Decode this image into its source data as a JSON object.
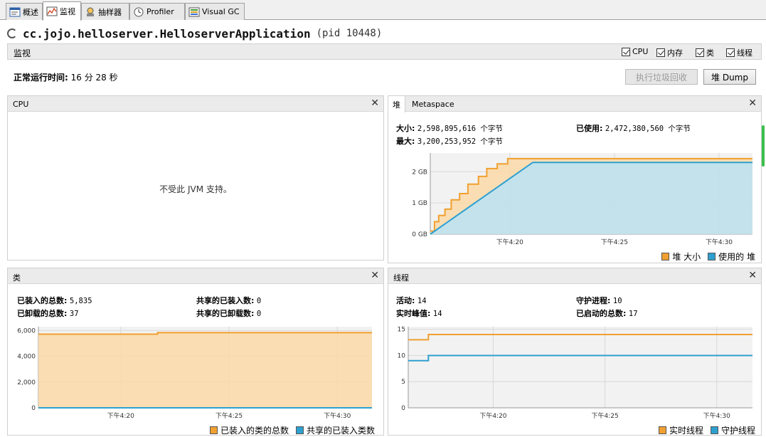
{
  "tabs": [
    {
      "label": "概述",
      "icon": "overview-icon"
    },
    {
      "label": "监视",
      "icon": "monitor-icon"
    },
    {
      "label": "抽样器",
      "icon": "sampler-icon"
    },
    {
      "label": "Profiler",
      "icon": "profiler-icon"
    },
    {
      "label": "Visual GC",
      "icon": "visual-gc-icon"
    }
  ],
  "app": {
    "name": "cc.jojo.helloserver.HelloserverApplication",
    "pid": "(pid 10448)"
  },
  "section": {
    "title": "监视",
    "checkboxes": [
      {
        "label": "CPU",
        "checked": true
      },
      {
        "label": "内存",
        "checked": true
      },
      {
        "label": "类",
        "checked": true
      },
      {
        "label": "线程",
        "checked": true
      }
    ]
  },
  "uptime": {
    "label": "正常运行时间:",
    "value": "16 分 28 秒"
  },
  "buttons": {
    "gc": "执行垃圾回收",
    "heap_dump": "堆 Dump"
  },
  "cpu_panel": {
    "title": "CPU",
    "message": "不受此 JVM 支持。"
  },
  "heap_panel": {
    "tabs": [
      "堆",
      "Metaspace"
    ],
    "size_label": "大小:",
    "size_value": "2,598,895,616 个字节",
    "max_label": "最大:",
    "max_value": "3,200,253,952 个字节",
    "used_label": "已使用:",
    "used_value": "2,472,380,560 个字节",
    "legend": [
      "堆 大小",
      "使用的 堆"
    ]
  },
  "classes_panel": {
    "title": "类",
    "loaded_label": "已装入的总数:",
    "loaded_value": "5,835",
    "unloaded_label": "已卸载的总数:",
    "unloaded_value": "37",
    "shared_loaded_label": "共享的已装入数:",
    "shared_loaded_value": "0",
    "shared_unloaded_label": "共享的已卸载数:",
    "shared_unloaded_value": "0",
    "legend": [
      "已装入的类的总数",
      "共享的已装入类数"
    ]
  },
  "threads_panel": {
    "title": "线程",
    "live_label": "活动:",
    "live_value": "14",
    "peak_label": "实时峰值:",
    "peak_value": "14",
    "daemon_label": "守护进程:",
    "daemon_value": "10",
    "started_label": "已启动的总数:",
    "started_value": "17",
    "legend": [
      "实时线程",
      "守护线程"
    ]
  },
  "colors": {
    "orange": "#f0a030",
    "orange_fill": "#fbd9a8",
    "blue": "#2ea0d0",
    "blue_fill": "#b9e3f5"
  },
  "chart_data": [
    {
      "type": "area",
      "name": "heap",
      "x_ticks": [
        "下午4:20",
        "下午4:25",
        "下午4:30"
      ],
      "x_tick_minutes": [
        20,
        25,
        30
      ],
      "x_range_minutes": [
        16.2,
        31.6
      ],
      "y_ticks": [
        "0 GB",
        "1 GB",
        "2 GB"
      ],
      "y_tick_values": [
        0,
        1,
        2
      ],
      "ylim": [
        0,
        2.6
      ],
      "series": [
        {
          "name": "堆 大小",
          "x": [
            16.2,
            16.4,
            16.4,
            16.6,
            16.6,
            16.9,
            16.9,
            17.2,
            17.2,
            17.6,
            17.6,
            18.0,
            18.0,
            18.5,
            18.5,
            18.9,
            18.9,
            19.4,
            19.4,
            19.9,
            19.9,
            31.6
          ],
          "values": [
            0.1,
            0.1,
            0.4,
            0.4,
            0.6,
            0.6,
            0.8,
            0.8,
            1.1,
            1.1,
            1.3,
            1.3,
            1.6,
            1.6,
            1.85,
            1.85,
            2.1,
            2.1,
            2.25,
            2.25,
            2.42,
            2.42
          ]
        },
        {
          "name": "使用的 堆",
          "x": [
            16.2,
            21.1,
            31.6
          ],
          "values": [
            0.0,
            2.3,
            2.3
          ]
        }
      ]
    },
    {
      "type": "area",
      "name": "classes",
      "x_ticks": [
        "下午4:20",
        "下午4:25",
        "下午4:30"
      ],
      "x_tick_minutes": [
        20,
        25,
        30
      ],
      "x_range_minutes": [
        16.2,
        31.6
      ],
      "y_ticks": [
        "0",
        "2,000",
        "4,000",
        "6,000"
      ],
      "y_tick_values": [
        0,
        2000,
        4000,
        6000
      ],
      "ylim": [
        0,
        6300
      ],
      "series": [
        {
          "name": "已装入的类的总数",
          "x": [
            16.2,
            21.7,
            21.7,
            31.6
          ],
          "values": [
            5720,
            5720,
            5835,
            5835
          ]
        },
        {
          "name": "共享的已装入类数",
          "x": [
            16.2,
            31.6
          ],
          "values": [
            0,
            0
          ]
        }
      ]
    },
    {
      "type": "line",
      "name": "threads",
      "x_ticks": [
        "下午4:20",
        "下午4:25",
        "下午4:30"
      ],
      "x_tick_minutes": [
        20,
        25,
        30
      ],
      "x_range_minutes": [
        16.2,
        31.6
      ],
      "y_ticks": [
        "0",
        "5",
        "10",
        "15"
      ],
      "y_tick_values": [
        0,
        5,
        10,
        15
      ],
      "ylim": [
        0,
        15.5
      ],
      "series": [
        {
          "name": "实时线程",
          "x": [
            16.2,
            17.1,
            17.1,
            31.6
          ],
          "values": [
            13,
            13,
            14,
            14
          ]
        },
        {
          "name": "守护线程",
          "x": [
            16.2,
            17.1,
            17.1,
            31.6
          ],
          "values": [
            9,
            9,
            10,
            10
          ]
        }
      ]
    }
  ]
}
